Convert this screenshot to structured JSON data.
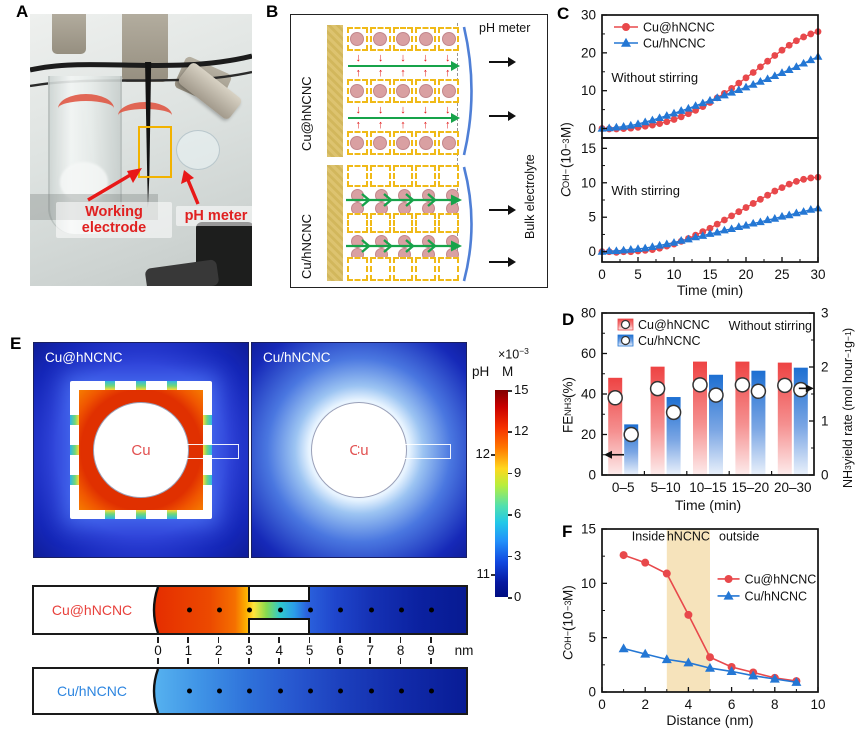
{
  "colors": {
    "red": "#e8484b",
    "blue": "#2477d4",
    "bar_red_top": "#ee4343",
    "bar_blue_top": "#1d6fd2",
    "strip_red_label": "#e8413c",
    "strip_blue_label": "#2e86e0",
    "band": "#f6e3bb"
  },
  "panels": {
    "A": {
      "label": "A",
      "working_electrode": "Working electrode",
      "ph_meter": "pH meter"
    },
    "B": {
      "label": "B",
      "row_labels": [
        "Cu@hNCNC",
        "Cu/hNCNC"
      ],
      "ph_meter": "pH meter",
      "bulk": "Bulk electrolyte",
      "schematic": {
        "cells_per_row": 5,
        "top_lattice_rows": 3,
        "bottom_lattice_rows": 3,
        "flow_rows": 2
      }
    },
    "C": {
      "label": "C"
    },
    "D": {
      "label": "D"
    },
    "E": {
      "label": "E",
      "maps": [
        {
          "title": "Cu@hNCNC",
          "center": "Cu"
        },
        {
          "title": "Cu/hNCNC",
          "center": "Cu"
        }
      ],
      "colorbar": {
        "multiplier_parts": [
          {
            "t": "×10"
          },
          {
            "t": "−3",
            "c": "sup"
          }
        ],
        "ph": "pH",
        "m": "M",
        "right_ticks": [
          15,
          12,
          9,
          6,
          3,
          0
        ],
        "ph_ticks": [
          {
            "v": "12",
            "f": 0.31
          },
          {
            "v": "11",
            "f": 0.89
          }
        ]
      },
      "strips": [
        {
          "label": "Cu@hNCNC"
        },
        {
          "label": "Cu/hNCNC"
        }
      ],
      "scale": {
        "ticks": [
          0,
          1,
          2,
          3,
          4,
          5,
          6,
          7,
          8,
          9
        ],
        "unit": "nm"
      }
    },
    "F": {
      "label": "F"
    }
  },
  "chart_data": [
    {
      "id": "C",
      "type": "line",
      "title": "",
      "xlabel": "Time (min)",
      "xlim": [
        0,
        30
      ],
      "xticks": [
        0,
        5,
        10,
        15,
        20,
        25,
        30
      ],
      "xminor": [
        2.5,
        7.5,
        12.5,
        17.5,
        22.5,
        27.5
      ],
      "ylabel_parts": [
        {
          "t": "C",
          "c": "it"
        },
        {
          "t": "OH−",
          "c": "sub"
        },
        {
          "t": " (10"
        },
        {
          "t": "−3",
          "c": "sup"
        },
        {
          "t": " M)"
        }
      ],
      "legend": [
        {
          "label": "Cu@hNCNC",
          "color": "red",
          "marker": "circle"
        },
        {
          "label": "Cu/hNCNC",
          "color": "blue",
          "marker": "triangle"
        }
      ],
      "x": [
        0,
        1,
        2,
        3,
        4,
        5,
        6,
        7,
        8,
        9,
        10,
        11,
        12,
        13,
        14,
        15,
        16,
        17,
        18,
        19,
        20,
        21,
        22,
        23,
        24,
        25,
        26,
        27,
        28,
        29,
        30
      ],
      "subplots": [
        {
          "annotation": "Without stirring",
          "ann_xy": [
            1.3,
            12.3
          ],
          "ylim": [
            -2.5,
            30
          ],
          "yticks": [
            0,
            10,
            20,
            30
          ],
          "yminor": [
            5,
            15,
            25
          ],
          "series": [
            {
              "name": "Cu@hNCNC",
              "color": "red",
              "marker": "circle",
              "y": [
                0,
                -0.1,
                -0.1,
                0,
                0.1,
                0.3,
                0.6,
                0.9,
                1.3,
                1.8,
                2.4,
                3.1,
                3.9,
                4.8,
                5.8,
                6.9,
                8.1,
                9.3,
                10.6,
                12,
                13.4,
                14.8,
                16.3,
                17.8,
                19.3,
                20.7,
                22,
                23.2,
                24.2,
                25,
                25.6
              ]
            },
            {
              "name": "Cu/hNCNC",
              "color": "blue",
              "marker": "triangle",
              "y": [
                0,
                0.1,
                0.3,
                0.5,
                0.8,
                1.2,
                1.7,
                2.2,
                2.8,
                3.4,
                4,
                4.7,
                5.3,
                6,
                6.7,
                7.4,
                8.1,
                8.8,
                9.5,
                10.2,
                10.9,
                11.6,
                12.4,
                13.1,
                13.9,
                14.7,
                15.5,
                16.3,
                17.2,
                18.1,
                19
              ]
            }
          ]
        },
        {
          "annotation": "With stirring",
          "ann_xy": [
            1.3,
            8.2
          ],
          "ylim": [
            -1.5,
            16.5
          ],
          "yticks": [
            0,
            5,
            10,
            15
          ],
          "yminor": [
            2.5,
            7.5,
            12.5
          ],
          "series": [
            {
              "name": "Cu@hNCNC",
              "color": "red",
              "marker": "circle",
              "y": [
                0,
                0,
                -0.1,
                0,
                0,
                0.1,
                0.2,
                0.3,
                0.5,
                0.8,
                1.1,
                1.5,
                1.9,
                2.4,
                2.9,
                3.4,
                4,
                4.6,
                5.2,
                5.8,
                6.4,
                7,
                7.6,
                8.2,
                8.8,
                9.3,
                9.8,
                10.2,
                10.5,
                10.7,
                10.8
              ]
            },
            {
              "name": "Cu/hNCNC",
              "color": "blue",
              "marker": "triangle",
              "y": [
                0,
                0.1,
                0.1,
                0.2,
                0.3,
                0.4,
                0.5,
                0.7,
                0.9,
                1.1,
                1.3,
                1.6,
                1.8,
                2.1,
                2.3,
                2.6,
                2.8,
                3.1,
                3.3,
                3.6,
                3.8,
                4.1,
                4.3,
                4.6,
                4.8,
                5.1,
                5.3,
                5.6,
                5.8,
                6.1,
                6.3
              ]
            }
          ]
        }
      ]
    },
    {
      "id": "D",
      "type": "bar",
      "categories": [
        "0–5",
        "5–10",
        "10–15",
        "15–20",
        "20–30"
      ],
      "xlabel": "Time (min)",
      "annotation": "Without stirring",
      "left": {
        "lim": [
          0,
          80
        ],
        "ticks": [
          0,
          20,
          40,
          60,
          80
        ],
        "minor": [
          10,
          30,
          50,
          70
        ],
        "label_parts": [
          {
            "t": "FE"
          },
          {
            "t": "NH3",
            "c": "sub"
          },
          {
            "t": " (%)"
          }
        ]
      },
      "right": {
        "lim": [
          0,
          3
        ],
        "ticks": [
          0,
          1,
          2,
          3
        ],
        "minor": [
          0.5,
          1.5,
          2.5
        ],
        "label_parts": [
          {
            "t": "NH"
          },
          {
            "t": "3",
            "c": "sub"
          },
          {
            "t": " yield rate (mol hour"
          },
          {
            "t": "−1",
            "c": "sup"
          },
          {
            "t": " g"
          },
          {
            "t": "−1",
            "c": "sup"
          },
          {
            "t": ")"
          }
        ]
      },
      "series": [
        {
          "name": "Cu@hNCNC",
          "color": "red",
          "fe": [
            48,
            53.5,
            56,
            56,
            55.5
          ],
          "yield": [
            1.43,
            1.6,
            1.67,
            1.67,
            1.66
          ]
        },
        {
          "name": "Cu/hNCNC",
          "color": "blue",
          "fe": [
            25,
            38.5,
            49.5,
            51.5,
            53
          ],
          "yield": [
            0.75,
            1.16,
            1.48,
            1.55,
            1.58
          ]
        }
      ]
    },
    {
      "id": "F",
      "type": "line",
      "xlabel": "Distance (nm)",
      "xlim": [
        0,
        10
      ],
      "ylim": [
        0,
        15
      ],
      "xticks": [
        0,
        2,
        4,
        6,
        8,
        10
      ],
      "xminor": [
        1,
        3,
        5,
        7,
        9
      ],
      "yticks": [
        0,
        5,
        10,
        15
      ],
      "yminor": [
        2.5,
        7.5,
        12.5
      ],
      "ylabel_parts": [
        {
          "t": "C",
          "c": "it"
        },
        {
          "t": "OH−",
          "c": "sub"
        },
        {
          "t": " (10"
        },
        {
          "t": "−3",
          "c": "sup"
        },
        {
          "t": " M)"
        }
      ],
      "band": {
        "from": 3,
        "to": 5
      },
      "zone_y": 14.3,
      "zone_labels": [
        {
          "text": "Inside",
          "x": 2.15
        },
        {
          "text": "hNCNC",
          "x": 4.0
        },
        {
          "text": "outside",
          "x": 6.35
        }
      ],
      "legend_xy": [
        5.35,
        10.4
      ],
      "x": [
        1,
        2,
        3,
        4,
        5,
        6,
        7,
        8,
        9
      ],
      "series": [
        {
          "name": "Cu@hNCNC",
          "color": "red",
          "marker": "circle",
          "y": [
            12.6,
            11.9,
            10.9,
            7.1,
            3.2,
            2.3,
            1.8,
            1.3,
            1.0
          ]
        },
        {
          "name": "Cu/hNCNC",
          "color": "blue",
          "marker": "triangle",
          "y": [
            4.0,
            3.5,
            3.0,
            2.7,
            2.2,
            1.9,
            1.5,
            1.2,
            0.9
          ]
        }
      ]
    }
  ]
}
